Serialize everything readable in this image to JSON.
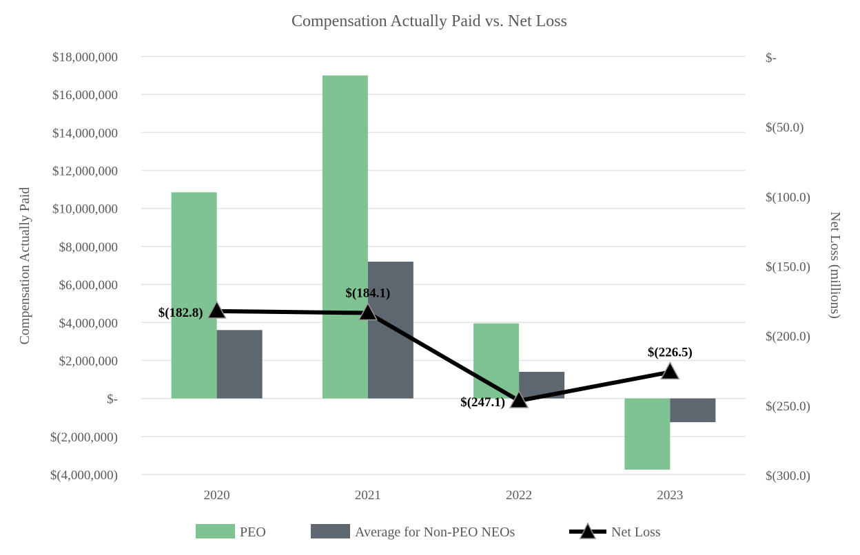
{
  "chart_data": {
    "type": "bar",
    "title": "Compensation Actually Paid vs. Net Loss",
    "categories": [
      "2020",
      "2021",
      "2022",
      "2023"
    ],
    "ylabel": "Compensation Actually Paid",
    "y2label": "Net Loss (millions)",
    "ylim": [
      -4000000,
      18000000
    ],
    "yticks": [
      {
        "value": 18000000,
        "label": "$18,000,000"
      },
      {
        "value": 16000000,
        "label": "$16,000,000"
      },
      {
        "value": 14000000,
        "label": "$14,000,000"
      },
      {
        "value": 12000000,
        "label": "$12,000,000"
      },
      {
        "value": 10000000,
        "label": "$10,000,000"
      },
      {
        "value": 8000000,
        "label": "$8,000,000"
      },
      {
        "value": 6000000,
        "label": "$6,000,000"
      },
      {
        "value": 4000000,
        "label": "$4,000,000"
      },
      {
        "value": 2000000,
        "label": "$2,000,000"
      },
      {
        "value": 0,
        "label": "$-"
      },
      {
        "value": -2000000,
        "label": "$(2,000,000)"
      },
      {
        "value": -4000000,
        "label": "$(4,000,000)"
      }
    ],
    "y2lim": [
      -300,
      0
    ],
    "y2ticks": [
      {
        "value": 0,
        "label": "$-"
      },
      {
        "value": -50,
        "label": "$(50.0)"
      },
      {
        "value": -100,
        "label": "$(100.0)"
      },
      {
        "value": -150,
        "label": "$(150.0)"
      },
      {
        "value": -200,
        "label": "$(200.0)"
      },
      {
        "value": -250,
        "label": "$(250.0)"
      },
      {
        "value": -300,
        "label": "$(300.0)"
      }
    ],
    "series": [
      {
        "name": "PEO",
        "type": "bar",
        "axis": "left",
        "color": "#7fc393",
        "values": [
          10850000,
          17000000,
          3950000,
          -3750000
        ]
      },
      {
        "name": "Average for Non-PEO NEOs",
        "type": "bar",
        "axis": "left",
        "color": "#5e6770",
        "values": [
          3600000,
          7200000,
          1400000,
          -1250000
        ]
      },
      {
        "name": "Net Loss",
        "type": "line",
        "axis": "right",
        "color": "#000000",
        "marker": "triangle",
        "values": [
          -182.8,
          -184.1,
          -247.1,
          -226.5
        ],
        "labels": [
          "$(182.8)",
          "$(184.1)",
          "$(247.1)",
          "$(226.5)"
        ],
        "label_positions": [
          "left",
          "above",
          "left",
          "above"
        ]
      }
    ],
    "legend": {
      "placement": "bottom",
      "items": [
        "PEO",
        "Average for Non-PEO NEOs",
        "Net Loss"
      ]
    },
    "grid": true
  }
}
